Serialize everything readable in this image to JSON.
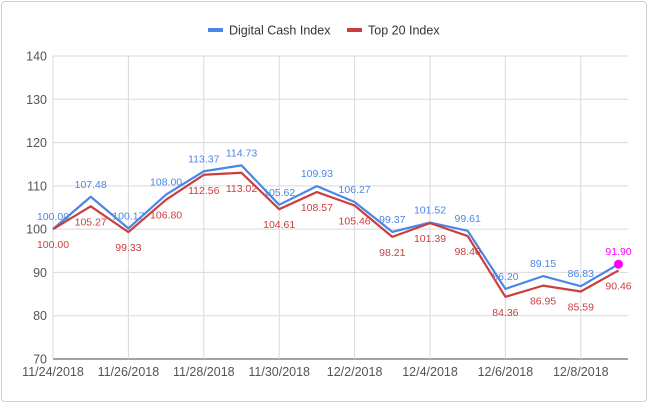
{
  "chart_data": {
    "type": "line",
    "title": "",
    "xlabel": "",
    "ylabel": "",
    "ylim": [
      70,
      140
    ],
    "yticks": [
      70,
      80,
      90,
      100,
      110,
      120,
      130,
      140
    ],
    "x": [
      "11/24/2018",
      "11/25/2018",
      "11/26/2018",
      "11/27/2018",
      "11/28/2018",
      "11/29/2018",
      "11/30/2018",
      "12/1/2018",
      "12/2/2018",
      "12/3/2018",
      "12/4/2018",
      "12/5/2018",
      "12/6/2018",
      "12/7/2018",
      "12/8/2018",
      "12/9/2018"
    ],
    "xtick_labels": [
      "11/24/2018",
      "11/26/2018",
      "11/28/2018",
      "11/30/2018",
      "12/2/2018",
      "12/4/2018",
      "12/6/2018",
      "12/8/2018"
    ],
    "grid": true,
    "legend_position": "top",
    "series": [
      {
        "name": "Digital Cash Index",
        "color": "#4a86e8",
        "values": [
          100.0,
          107.48,
          100.17,
          108.0,
          113.37,
          114.73,
          105.62,
          109.93,
          106.27,
          99.37,
          101.52,
          99.61,
          86.2,
          89.15,
          86.83,
          91.9
        ],
        "labels": [
          "100.00",
          "107.48",
          "100.17",
          "108.00",
          "113.37",
          "114.73",
          "105.62",
          "109.93",
          "106.27",
          "99.37",
          "101.52",
          "99.61",
          "86.20",
          "89.15",
          "86.83",
          "91.90"
        ]
      },
      {
        "name": "Top 20 Index",
        "color": "#cc3e3e",
        "values": [
          100.0,
          105.27,
          99.33,
          106.8,
          112.56,
          113.02,
          104.61,
          108.57,
          105.46,
          98.21,
          101.39,
          98.4,
          84.36,
          86.95,
          85.59,
          90.46
        ],
        "labels": [
          "100.00",
          "105.27",
          "99.33",
          "106.80",
          "112.56",
          "113.02",
          "104.61",
          "108.57",
          "105.46",
          "98.21",
          "101.39",
          "98.40",
          "84.36",
          "86.95",
          "85.59",
          "90.46"
        ]
      }
    ],
    "highlight": {
      "series": 0,
      "index": 15,
      "color": "#ff00ff"
    }
  }
}
